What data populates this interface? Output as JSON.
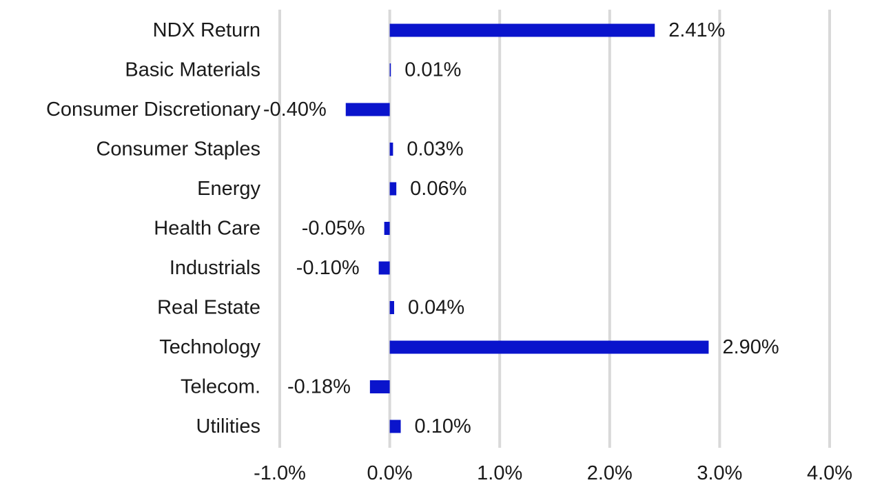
{
  "chart_data": {
    "type": "bar",
    "orientation": "horizontal",
    "categories": [
      "NDX Return",
      "Basic Materials",
      "Consumer Discretionary",
      "Consumer Staples",
      "Energy",
      "Health Care",
      "Industrials",
      "Real Estate",
      "Technology",
      "Telecom.",
      "Utilities"
    ],
    "values": [
      2.41,
      0.01,
      -0.4,
      0.03,
      0.06,
      -0.05,
      -0.1,
      0.04,
      2.9,
      -0.18,
      0.1
    ],
    "value_labels": [
      "2.41%",
      "0.01%",
      "-0.40%",
      "0.03%",
      "0.06%",
      "-0.05%",
      "-0.10%",
      "0.04%",
      "2.90%",
      "-0.18%",
      "0.10%"
    ],
    "xticks": [
      -1.0,
      0.0,
      1.0,
      2.0,
      3.0,
      4.0
    ],
    "xtick_labels": [
      "-1.0%",
      "0.0%",
      "1.0%",
      "2.0%",
      "3.0%",
      "4.0%"
    ],
    "xlim": [
      -1.0,
      4.0
    ],
    "title": "",
    "xlabel": "",
    "ylabel": "",
    "grid": "vertical",
    "legend": "none",
    "bar_color": "#0a14cc",
    "grid_color": "#d9d9d9"
  }
}
